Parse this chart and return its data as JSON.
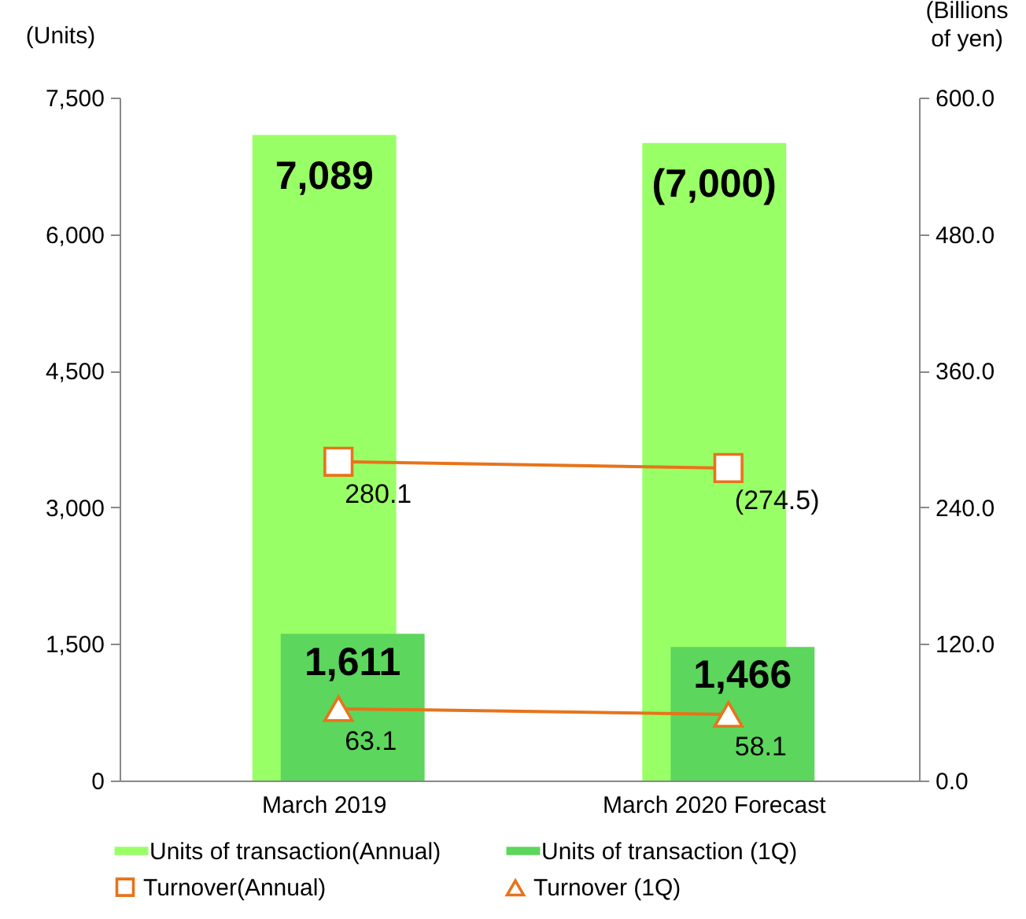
{
  "chart_data": {
    "type": "bar",
    "categories": [
      "March 2019",
      "March 2020 Forecast"
    ],
    "ylabel": "(Units)",
    "y2label": "(Billions of yen)",
    "ylim": [
      0,
      7500
    ],
    "yticks": [
      {
        "value": 0,
        "label": "0"
      },
      {
        "value": 1500,
        "label": "1,500"
      },
      {
        "value": 3000,
        "label": "3,000"
      },
      {
        "value": 4500,
        "label": "4,500"
      },
      {
        "value": 6000,
        "label": "6,000"
      },
      {
        "value": 7500,
        "label": "7,500"
      }
    ],
    "y2lim": [
      0,
      600
    ],
    "y2ticks": [
      {
        "value": 0,
        "label": "0.0"
      },
      {
        "value": 120,
        "label": "120.0"
      },
      {
        "value": 240,
        "label": "240.0"
      },
      {
        "value": 360,
        "label": "360.0"
      },
      {
        "value": 480,
        "label": "480.0"
      },
      {
        "value": 600,
        "label": "600.0"
      }
    ],
    "legend": "bottom",
    "grid": false,
    "series": [
      {
        "name": "Units of transaction(Annual)",
        "color": "#99ff66",
        "values": [
          7089,
          7000
        ],
        "value_labels": [
          "7,089",
          "(7,000)"
        ]
      },
      {
        "name": "Units of transaction (1Q)",
        "color": "#5cd65c",
        "values": [
          1611,
          1466
        ],
        "value_labels": [
          "1,611",
          "1,466"
        ]
      },
      {
        "name": "Turnover(Annual)",
        "type": "line",
        "axis": "y2",
        "marker": "square",
        "color": "#e8731a",
        "values": [
          280.1,
          274.5
        ],
        "value_labels": [
          "280.1",
          "(274.5)"
        ]
      },
      {
        "name": "Turnover (1Q)",
        "type": "line",
        "axis": "y2",
        "marker": "triangle",
        "color": "#e8731a",
        "values": [
          63.1,
          58.1
        ],
        "value_labels": [
          "63.1",
          "58.1"
        ]
      }
    ]
  }
}
